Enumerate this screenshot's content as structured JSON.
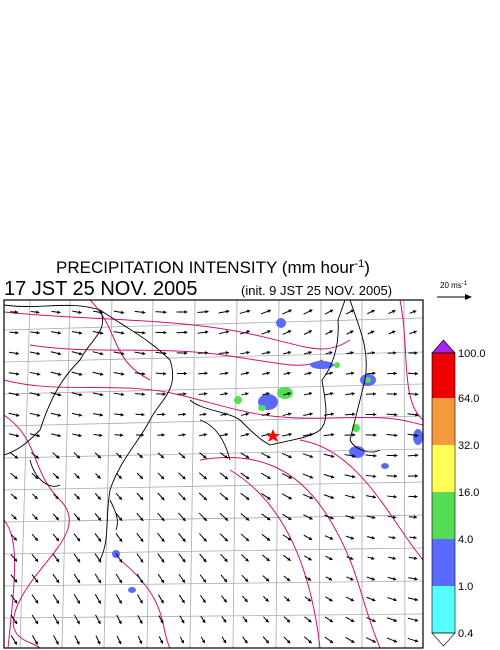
{
  "header": {
    "title": {
      "text": "PRECIPITATION INTENSITY (mm hour",
      "superscript": "-1",
      "suffix": ")"
    },
    "valid_time": "17 JST 25 NOV. 2005",
    "init_time": "(init. 9 JST 25 NOV. 2005)"
  },
  "vector_scale": {
    "text": "20 ms",
    "superscript": "-1"
  },
  "colorbar": {
    "labels": [
      "100.0",
      "64.0",
      "32.0",
      "16.0",
      "4.0",
      "1.0",
      "0.4"
    ]
  }
}
